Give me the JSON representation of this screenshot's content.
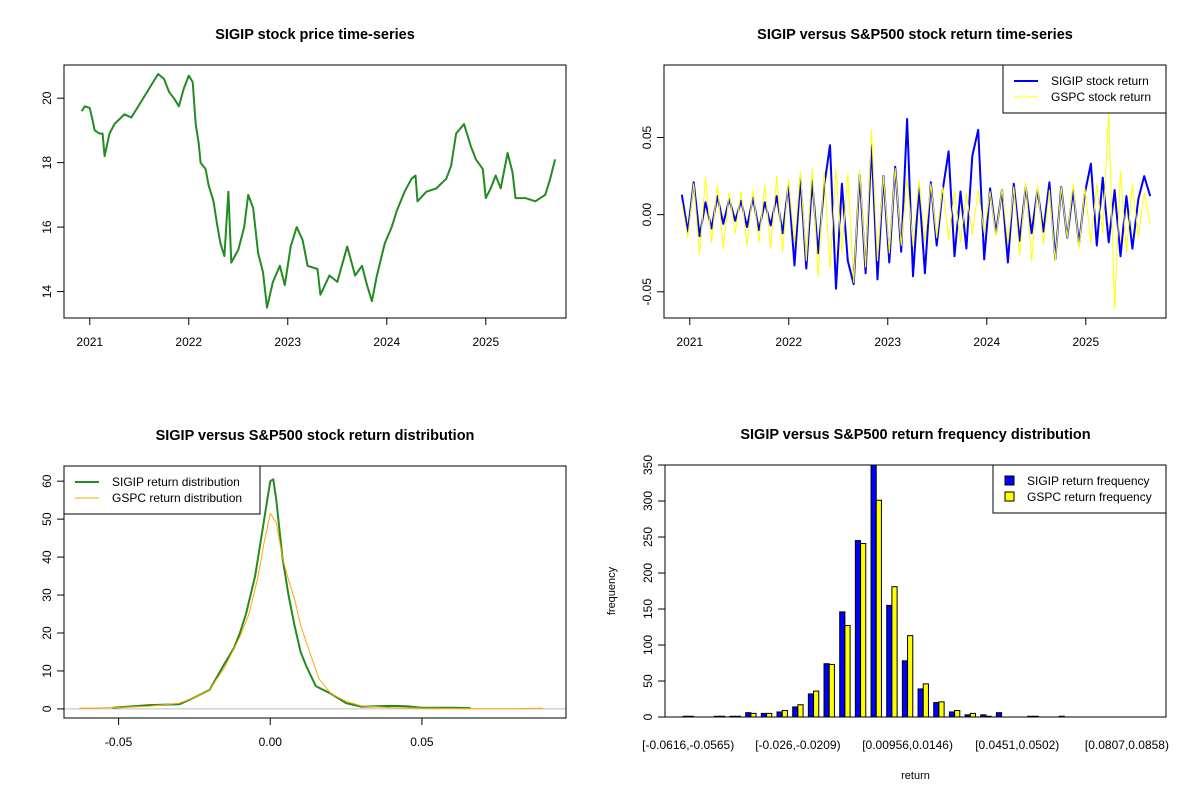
{
  "chart_data": [
    {
      "type": "line",
      "title": "SIGIP stock price time-series",
      "xlabel": "",
      "ylabel": "",
      "xlim": [
        2020.74,
        2025.81
      ],
      "ylim": [
        13.18,
        21.03
      ],
      "x_ticks": [
        {
          "value": 2021,
          "label": "2021"
        },
        {
          "value": 2022,
          "label": "2022"
        },
        {
          "value": 2023,
          "label": "2023"
        },
        {
          "value": 2024,
          "label": "2024"
        },
        {
          "value": 2025,
          "label": "2025"
        }
      ],
      "y_ticks": [
        {
          "value": 14,
          "label": "14"
        },
        {
          "value": 16,
          "label": "16"
        },
        {
          "value": 18,
          "label": "18"
        },
        {
          "value": 20,
          "label": "20"
        }
      ],
      "series": [
        {
          "name": "SIGIP price",
          "color": "#228B22",
          "points": [
            [
              2020.92,
              19.6
            ],
            [
              2020.95,
              19.75
            ],
            [
              2021.0,
              19.7
            ],
            [
              2021.03,
              19.3
            ],
            [
              2021.05,
              19.0
            ],
            [
              2021.1,
              18.9
            ],
            [
              2021.13,
              18.9
            ],
            [
              2021.15,
              18.2
            ],
            [
              2021.2,
              18.9
            ],
            [
              2021.25,
              19.2
            ],
            [
              2021.35,
              19.5
            ],
            [
              2021.42,
              19.4
            ],
            [
              2021.5,
              19.8
            ],
            [
              2021.6,
              20.3
            ],
            [
              2021.69,
              20.75
            ],
            [
              2021.75,
              20.6
            ],
            [
              2021.8,
              20.2
            ],
            [
              2021.85,
              20.0
            ],
            [
              2021.9,
              19.75
            ],
            [
              2021.95,
              20.3
            ],
            [
              2022.0,
              20.7
            ],
            [
              2022.04,
              20.5
            ],
            [
              2022.07,
              19.2
            ],
            [
              2022.1,
              18.6
            ],
            [
              2022.12,
              18.0
            ],
            [
              2022.17,
              17.8
            ],
            [
              2022.2,
              17.3
            ],
            [
              2022.25,
              16.8
            ],
            [
              2022.28,
              16.2
            ],
            [
              2022.32,
              15.5
            ],
            [
              2022.36,
              15.1
            ],
            [
              2022.4,
              17.1
            ],
            [
              2022.43,
              14.9
            ],
            [
              2022.5,
              15.3
            ],
            [
              2022.56,
              16.0
            ],
            [
              2022.6,
              17.0
            ],
            [
              2022.65,
              16.6
            ],
            [
              2022.7,
              15.2
            ],
            [
              2022.75,
              14.6
            ],
            [
              2022.79,
              13.5
            ],
            [
              2022.85,
              14.3
            ],
            [
              2022.92,
              14.8
            ],
            [
              2022.97,
              14.2
            ],
            [
              2023.03,
              15.4
            ],
            [
              2023.09,
              16.0
            ],
            [
              2023.15,
              15.6
            ],
            [
              2023.2,
              14.8
            ],
            [
              2023.3,
              14.7
            ],
            [
              2023.33,
              13.9
            ],
            [
              2023.42,
              14.5
            ],
            [
              2023.5,
              14.3
            ],
            [
              2023.6,
              15.4
            ],
            [
              2023.68,
              14.5
            ],
            [
              2023.75,
              14.8
            ],
            [
              2023.8,
              14.2
            ],
            [
              2023.85,
              13.7
            ],
            [
              2023.9,
              14.5
            ],
            [
              2023.98,
              15.5
            ],
            [
              2024.05,
              16.0
            ],
            [
              2024.1,
              16.5
            ],
            [
              2024.18,
              17.1
            ],
            [
              2024.25,
              17.5
            ],
            [
              2024.29,
              17.6
            ],
            [
              2024.31,
              16.8
            ],
            [
              2024.4,
              17.1
            ],
            [
              2024.5,
              17.2
            ],
            [
              2024.6,
              17.5
            ],
            [
              2024.65,
              17.9
            ],
            [
              2024.7,
              18.9
            ],
            [
              2024.78,
              19.2
            ],
            [
              2024.85,
              18.5
            ],
            [
              2024.9,
              18.1
            ],
            [
              2024.97,
              17.8
            ],
            [
              2025.0,
              16.9
            ],
            [
              2025.05,
              17.2
            ],
            [
              2025.1,
              17.6
            ],
            [
              2025.15,
              17.2
            ],
            [
              2025.22,
              18.3
            ],
            [
              2025.27,
              17.7
            ],
            [
              2025.3,
              16.9
            ],
            [
              2025.4,
              16.9
            ],
            [
              2025.5,
              16.8
            ],
            [
              2025.6,
              17.0
            ],
            [
              2025.65,
              17.5
            ],
            [
              2025.7,
              18.1
            ]
          ]
        }
      ]
    },
    {
      "type": "line",
      "title": "SIGIP versus S&P500 stock return time-series",
      "xlim": [
        2020.74,
        2025.81
      ],
      "ylim": [
        -0.067,
        0.097
      ],
      "x_ticks": [
        {
          "value": 2021,
          "label": "2021"
        },
        {
          "value": 2022,
          "label": "2022"
        },
        {
          "value": 2023,
          "label": "2023"
        },
        {
          "value": 2024,
          "label": "2024"
        },
        {
          "value": 2025,
          "label": "2025"
        }
      ],
      "y_ticks": [
        {
          "value": -0.05,
          "label": "-0.05"
        },
        {
          "value": 0,
          "label": "0.00"
        },
        {
          "value": 0.05,
          "label": "0.05"
        }
      ],
      "legend": {
        "position": "top-right",
        "entries": [
          {
            "label": "SIGIP stock return",
            "color": "#0000FF"
          },
          {
            "label": "GSPC stock return",
            "color": "#FFFF00"
          }
        ]
      },
      "series": [
        {
          "name": "SIGIP stock return",
          "color": "#0000FF",
          "x_start": 2020.92,
          "x_end": 2025.65,
          "values": [
            0.013,
            -0.011,
            0.021,
            -0.014,
            0.008,
            -0.009,
            0.012,
            -0.006,
            0.01,
            -0.004,
            0.009,
            -0.008,
            0.011,
            -0.01,
            0.008,
            -0.007,
            0.012,
            -0.012,
            0.019,
            -0.033,
            0.024,
            -0.035,
            0.022,
            -0.025,
            0.018,
            0.045,
            -0.048,
            0.02,
            -0.03,
            -0.045,
            0.026,
            -0.038,
            0.045,
            -0.042,
            0.025,
            -0.031,
            0.031,
            -0.024,
            0.062,
            -0.04,
            0.018,
            -0.038,
            0.021,
            -0.02,
            0.016,
            0.041,
            -0.027,
            0.015,
            -0.022,
            0.038,
            0.055,
            -0.029,
            0.017,
            -0.012,
            0.016,
            -0.031,
            0.02,
            -0.017,
            0.018,
            -0.012,
            0.016,
            -0.011,
            0.021,
            -0.029,
            0.018,
            -0.015,
            0.016,
            -0.019,
            0.014,
            0.033,
            -0.02,
            0.024,
            -0.018,
            0.016,
            -0.027,
            0.012,
            -0.022,
            0.01,
            0.025,
            0.012
          ]
        },
        {
          "name": "GSPC stock return",
          "color": "#FFFF00",
          "x_start": 2020.92,
          "x_end": 2025.65,
          "values": [
            0.008,
            -0.015,
            0.02,
            -0.026,
            0.024,
            -0.018,
            0.019,
            -0.022,
            0.014,
            -0.012,
            0.015,
            -0.02,
            0.016,
            -0.018,
            0.019,
            -0.022,
            0.025,
            -0.024,
            0.023,
            -0.019,
            0.028,
            -0.03,
            0.03,
            -0.04,
            0.028,
            -0.035,
            0.03,
            -0.025,
            0.027,
            -0.044,
            0.029,
            -0.034,
            0.055,
            -0.03,
            0.025,
            -0.025,
            0.03,
            -0.02,
            0.024,
            -0.02,
            0.022,
            -0.018,
            0.02,
            -0.015,
            0.018,
            -0.016,
            0.015,
            -0.018,
            0.014,
            -0.013,
            0.016,
            -0.012,
            0.015,
            -0.014,
            0.017,
            -0.019,
            0.018,
            -0.026,
            0.021,
            -0.03,
            0.019,
            -0.019,
            0.016,
            -0.03,
            0.018,
            -0.015,
            0.02,
            -0.022,
            0.017,
            -0.018,
            0.02,
            -0.012,
            0.066,
            -0.061,
            0.028,
            -0.024,
            0.02,
            -0.015,
            0.014,
            -0.006
          ]
        }
      ]
    },
    {
      "type": "line",
      "title": "SIGIP versus S&P500 stock return distribution",
      "xlim": [
        -0.068,
        0.0975
      ],
      "ylim": [
        -2.4,
        64
      ],
      "x_ticks": [
        {
          "value": -0.05,
          "label": "-0.05"
        },
        {
          "value": 0,
          "label": "0.00"
        },
        {
          "value": 0.05,
          "label": "0.05"
        }
      ],
      "y_ticks": [
        {
          "value": 0,
          "label": "0"
        },
        {
          "value": 10,
          "label": "10"
        },
        {
          "value": 20,
          "label": "20"
        },
        {
          "value": 30,
          "label": "30"
        },
        {
          "value": 40,
          "label": "40"
        },
        {
          "value": 50,
          "label": "50"
        },
        {
          "value": 60,
          "label": "60"
        }
      ],
      "legend": {
        "position": "top-left",
        "entries": [
          {
            "label": "SIGIP return distribution",
            "color": "#228B22"
          },
          {
            "label": "GSPC return distribution",
            "color": "#FFA500"
          }
        ]
      },
      "baseline_color": "#BEBEBE",
      "series": [
        {
          "name": "SIGIP return distribution",
          "color": "#228B22",
          "points": [
            [
              -0.052,
              0.3
            ],
            [
              -0.04,
              1
            ],
            [
              -0.03,
              1.2
            ],
            [
              -0.025,
              3
            ],
            [
              -0.02,
              5
            ],
            [
              -0.015,
              12
            ],
            [
              -0.012,
              16
            ],
            [
              -0.01,
              20
            ],
            [
              -0.008,
              25
            ],
            [
              -0.005,
              35
            ],
            [
              -0.003,
              45
            ],
            [
              -0.001,
              55
            ],
            [
              0,
              60
            ],
            [
              0.001,
              60.5
            ],
            [
              0.002,
              55
            ],
            [
              0.004,
              40
            ],
            [
              0.006,
              30
            ],
            [
              0.008,
              22
            ],
            [
              0.01,
              15
            ],
            [
              0.012,
              11
            ],
            [
              0.015,
              6
            ],
            [
              0.02,
              4
            ],
            [
              0.025,
              1.5
            ],
            [
              0.03,
              0.6
            ],
            [
              0.04,
              0.8
            ],
            [
              0.045,
              0.7
            ],
            [
              0.05,
              0.3
            ],
            [
              0.06,
              0.3
            ],
            [
              0.066,
              0.2
            ]
          ]
        },
        {
          "name": "GSPC return distribution",
          "color": "#FFA500",
          "points": [
            [
              -0.063,
              0.2
            ],
            [
              -0.058,
              0.2
            ],
            [
              -0.05,
              0.4
            ],
            [
              -0.04,
              0.7
            ],
            [
              -0.03,
              1.5
            ],
            [
              -0.025,
              3
            ],
            [
              -0.02,
              5
            ],
            [
              -0.015,
              11
            ],
            [
              -0.01,
              19
            ],
            [
              -0.007,
              25
            ],
            [
              -0.004,
              35
            ],
            [
              -0.002,
              44
            ],
            [
              0,
              51.5
            ],
            [
              0.002,
              49
            ],
            [
              0.004,
              40
            ],
            [
              0.006,
              34
            ],
            [
              0.008,
              29
            ],
            [
              0.01,
              22
            ],
            [
              0.013,
              15
            ],
            [
              0.016,
              8
            ],
            [
              0.02,
              4
            ],
            [
              0.025,
              2
            ],
            [
              0.03,
              0.8
            ],
            [
              0.04,
              0.3
            ],
            [
              0.05,
              0.2
            ],
            [
              0.06,
              0.1
            ],
            [
              0.07,
              0.05
            ],
            [
              0.08,
              0.05
            ],
            [
              0.09,
              0.2
            ]
          ]
        }
      ]
    },
    {
      "type": "bar",
      "title": "SIGIP versus S&P500 return frequency distribution",
      "xlabel": "return",
      "ylabel": "frequency",
      "ylim": [
        0,
        350
      ],
      "y_ticks": [
        {
          "value": 0,
          "label": "0"
        },
        {
          "value": 50,
          "label": "50"
        },
        {
          "value": 100,
          "label": "100"
        },
        {
          "value": 150,
          "label": "150"
        },
        {
          "value": 200,
          "label": "200"
        },
        {
          "value": 250,
          "label": "250"
        },
        {
          "value": 300,
          "label": "300"
        },
        {
          "value": 350,
          "label": "350"
        }
      ],
      "bin_count": 30,
      "x_tick_labels": [
        {
          "bin": 0,
          "label": "[-0.0616,-0.0565)"
        },
        {
          "bin": 7,
          "label": "[-0.026,-0.0209)"
        },
        {
          "bin": 14,
          "label": "[0.00956,0.0146)"
        },
        {
          "bin": 21,
          "label": "[0.0451,0.0502)"
        },
        {
          "bin": 28,
          "label": "[0.0807,0.0858)"
        }
      ],
      "legend": {
        "position": "top-right",
        "entries": [
          {
            "label": "SIGIP return frequency",
            "color": "#0000FF"
          },
          {
            "label": "GSPC return frequency",
            "color": "#FFFF00"
          }
        ]
      },
      "series": [
        {
          "name": "SIGIP return frequency",
          "color": "#0000FF",
          "values": [
            1,
            0,
            1,
            1,
            6,
            5,
            7,
            14,
            32,
            74,
            146,
            245,
            350,
            155,
            78,
            39,
            20,
            7,
            3,
            3,
            6,
            0,
            1,
            0,
            1,
            0,
            0,
            0,
            0,
            0
          ]
        },
        {
          "name": "GSPC return frequency",
          "color": "#FFFF00",
          "values": [
            1,
            0,
            1,
            1,
            5,
            5,
            9,
            17,
            36,
            73,
            127,
            241,
            301,
            181,
            113,
            46,
            21,
            9,
            5,
            1,
            0,
            0,
            1,
            0,
            0,
            0,
            0,
            0,
            0,
            0
          ]
        }
      ]
    }
  ]
}
